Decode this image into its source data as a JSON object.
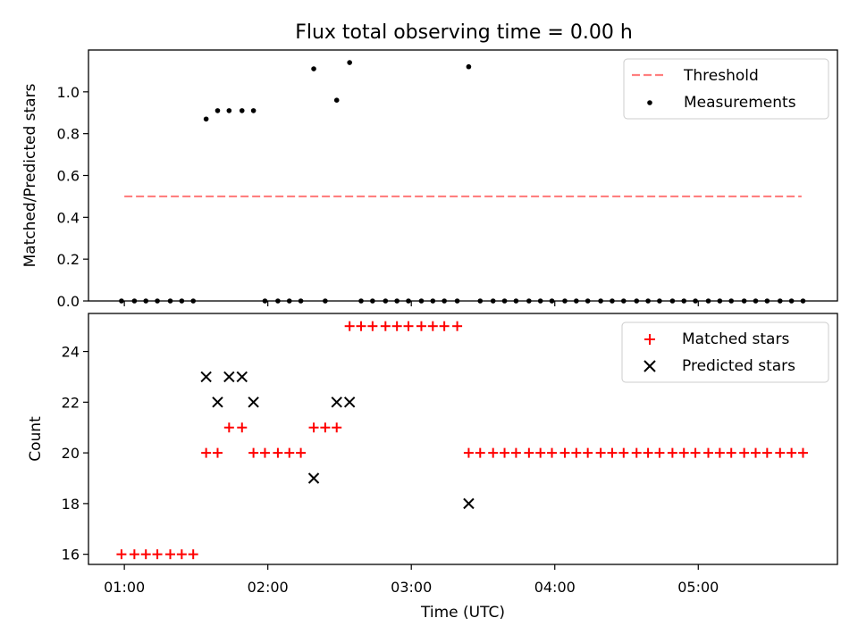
{
  "chart_data": {
    "title": "Flux total observing time = 0.00 h",
    "xlabel": "Time (UTC)",
    "x_unit": "hour of day (UTC)",
    "xlim": [
      0.75,
      5.97
    ],
    "xticks": [
      1,
      2,
      3,
      4,
      5
    ],
    "xtick_labels": [
      "01:00",
      "02:00",
      "03:00",
      "04:00",
      "05:00"
    ],
    "panels": [
      {
        "type": "scatter",
        "ylabel": "Matched/Predicted stars",
        "ylim": [
          0.0,
          1.2
        ],
        "yticks": [
          0.0,
          0.2,
          0.4,
          0.6,
          0.8,
          1.0
        ],
        "ytick_labels": [
          "0.0",
          "0.2",
          "0.4",
          "0.6",
          "0.8",
          "1.0"
        ],
        "legend_position": "top-right",
        "threshold": {
          "name": "Threshold",
          "value": 0.5,
          "x_range": [
            1.0,
            5.72
          ],
          "color": "#ff7f7f",
          "style": "dashed"
        },
        "series": [
          {
            "name": "Measurements",
            "marker": "dot",
            "color": "#000000",
            "points": [
              [
                0.98,
                0
              ],
              [
                1.07,
                0
              ],
              [
                1.15,
                0
              ],
              [
                1.23,
                0
              ],
              [
                1.32,
                0
              ],
              [
                1.4,
                0
              ],
              [
                1.48,
                0
              ],
              [
                1.57,
                0.87
              ],
              [
                1.65,
                0.91
              ],
              [
                1.73,
                0.91
              ],
              [
                1.82,
                0.91
              ],
              [
                1.9,
                0.91
              ],
              [
                1.98,
                0
              ],
              [
                2.07,
                0
              ],
              [
                2.15,
                0
              ],
              [
                2.23,
                0
              ],
              [
                2.32,
                1.11
              ],
              [
                2.4,
                0
              ],
              [
                2.48,
                0.96
              ],
              [
                2.57,
                1.14
              ],
              [
                2.65,
                0
              ],
              [
                2.73,
                0
              ],
              [
                2.82,
                0
              ],
              [
                2.9,
                0
              ],
              [
                2.98,
                0
              ],
              [
                3.07,
                0
              ],
              [
                3.15,
                0
              ],
              [
                3.23,
                0
              ],
              [
                3.32,
                0
              ],
              [
                3.4,
                1.12
              ],
              [
                3.48,
                0
              ],
              [
                3.57,
                0
              ],
              [
                3.65,
                0
              ],
              [
                3.73,
                0
              ],
              [
                3.82,
                0
              ],
              [
                3.9,
                0
              ],
              [
                3.98,
                0
              ],
              [
                4.07,
                0
              ],
              [
                4.15,
                0
              ],
              [
                4.23,
                0
              ],
              [
                4.32,
                0
              ],
              [
                4.4,
                0
              ],
              [
                4.48,
                0
              ],
              [
                4.57,
                0
              ],
              [
                4.65,
                0
              ],
              [
                4.73,
                0
              ],
              [
                4.82,
                0
              ],
              [
                4.9,
                0
              ],
              [
                4.98,
                0
              ],
              [
                5.07,
                0
              ],
              [
                5.15,
                0
              ],
              [
                5.23,
                0
              ],
              [
                5.32,
                0
              ],
              [
                5.4,
                0
              ],
              [
                5.48,
                0
              ],
              [
                5.57,
                0
              ],
              [
                5.65,
                0
              ],
              [
                5.73,
                0
              ]
            ]
          }
        ]
      },
      {
        "type": "scatter",
        "ylabel": "Count",
        "ylim": [
          15.6,
          25.5
        ],
        "yticks": [
          16,
          18,
          20,
          22,
          24
        ],
        "ytick_labels": [
          "16",
          "18",
          "20",
          "22",
          "24"
        ],
        "legend_position": "top-right",
        "series": [
          {
            "name": "Matched stars",
            "marker": "plus",
            "color": "#ff0000",
            "points": [
              [
                0.98,
                16
              ],
              [
                1.07,
                16
              ],
              [
                1.15,
                16
              ],
              [
                1.23,
                16
              ],
              [
                1.32,
                16
              ],
              [
                1.4,
                16
              ],
              [
                1.48,
                16
              ],
              [
                1.57,
                20
              ],
              [
                1.65,
                20
              ],
              [
                1.73,
                21
              ],
              [
                1.82,
                21
              ],
              [
                1.9,
                20
              ],
              [
                1.98,
                20
              ],
              [
                2.07,
                20
              ],
              [
                2.15,
                20
              ],
              [
                2.23,
                20
              ],
              [
                2.32,
                21
              ],
              [
                2.4,
                21
              ],
              [
                2.48,
                21
              ],
              [
                2.57,
                25
              ],
              [
                2.65,
                25
              ],
              [
                2.73,
                25
              ],
              [
                2.82,
                25
              ],
              [
                2.9,
                25
              ],
              [
                2.98,
                25
              ],
              [
                3.07,
                25
              ],
              [
                3.15,
                25
              ],
              [
                3.23,
                25
              ],
              [
                3.32,
                25
              ],
              [
                3.4,
                20
              ],
              [
                3.48,
                20
              ],
              [
                3.57,
                20
              ],
              [
                3.65,
                20
              ],
              [
                3.73,
                20
              ],
              [
                3.82,
                20
              ],
              [
                3.9,
                20
              ],
              [
                3.98,
                20
              ],
              [
                4.07,
                20
              ],
              [
                4.15,
                20
              ],
              [
                4.23,
                20
              ],
              [
                4.32,
                20
              ],
              [
                4.4,
                20
              ],
              [
                4.48,
                20
              ],
              [
                4.57,
                20
              ],
              [
                4.65,
                20
              ],
              [
                4.73,
                20
              ],
              [
                4.82,
                20
              ],
              [
                4.9,
                20
              ],
              [
                4.98,
                20
              ],
              [
                5.07,
                20
              ],
              [
                5.15,
                20
              ],
              [
                5.23,
                20
              ],
              [
                5.32,
                20
              ],
              [
                5.4,
                20
              ],
              [
                5.48,
                20
              ],
              [
                5.57,
                20
              ],
              [
                5.65,
                20
              ],
              [
                5.73,
                20
              ]
            ]
          },
          {
            "name": "Predicted stars",
            "marker": "x",
            "color": "#000000",
            "points": [
              [
                1.57,
                23
              ],
              [
                1.65,
                22
              ],
              [
                1.73,
                23
              ],
              [
                1.82,
                23
              ],
              [
                1.9,
                22
              ],
              [
                2.32,
                19
              ],
              [
                2.48,
                22
              ],
              [
                2.57,
                22
              ],
              [
                3.4,
                18
              ]
            ]
          }
        ]
      }
    ]
  }
}
